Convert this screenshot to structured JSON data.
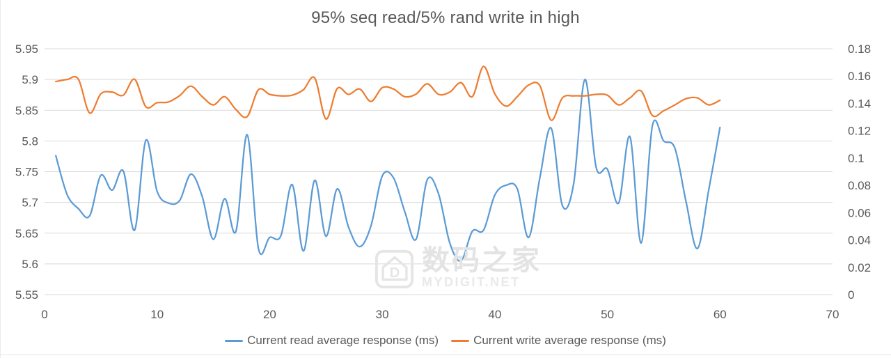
{
  "title": "95% seq read/5% rand write in high",
  "watermark": {
    "logo": "mydigit-home-logo",
    "cjk": "数码之家",
    "latin": "MYDIGIT.NET"
  },
  "legend": [
    {
      "label": "Current read average response (ms)",
      "color": "#5B9BD5"
    },
    {
      "label": "Current write average response (ms)",
      "color": "#ED7D31"
    }
  ],
  "colors": {
    "read_line": "#5B9BD5",
    "write_line": "#ED7D31",
    "grid": "#D9D9D9",
    "axis_text": "#595959",
    "title_text": "#595959",
    "watermark": "#e3e3e3",
    "background": "#ffffff"
  },
  "chart_data": {
    "type": "line",
    "smooth": true,
    "grid": "horizontal",
    "legend_position": "bottom",
    "title": "95% seq read/5% rand write in high",
    "xlabel": "",
    "ylabel_left": "",
    "ylabel_right": "",
    "xlim": [
      0,
      70
    ],
    "ylim_left": [
      5.55,
      5.95
    ],
    "ylim_right": [
      0,
      0.18
    ],
    "x_axis": {
      "ticks": [
        "0",
        "10",
        "20",
        "30",
        "40",
        "50",
        "60",
        "70"
      ]
    },
    "y_axis_left": {
      "ticks": [
        "5.95",
        "5.9",
        "5.85",
        "5.8",
        "5.75",
        "5.7",
        "5.65",
        "5.6",
        "5.55"
      ]
    },
    "y_axis_right": {
      "ticks": [
        "0.18",
        "0.16",
        "0.14",
        "0.12",
        "0.1",
        "0.08",
        "0.06",
        "0.04",
        "0.02",
        "0"
      ]
    },
    "x": [
      1,
      2,
      3,
      4,
      5,
      6,
      7,
      8,
      9,
      10,
      11,
      12,
      13,
      14,
      15,
      16,
      17,
      18,
      19,
      20,
      21,
      22,
      23,
      24,
      25,
      26,
      27,
      28,
      29,
      30,
      31,
      32,
      33,
      34,
      35,
      36,
      37,
      38,
      39,
      40,
      41,
      42,
      43,
      44,
      45,
      46,
      47,
      48,
      49,
      50,
      51,
      52,
      53,
      54,
      55,
      56,
      57,
      58,
      59,
      60
    ],
    "series": [
      {
        "name": "Current read average response (ms)",
        "axis": "left",
        "color": "#5B9BD5",
        "values": [
          5.776,
          5.713,
          5.69,
          5.678,
          5.744,
          5.72,
          5.751,
          5.655,
          5.801,
          5.718,
          5.699,
          5.703,
          5.746,
          5.71,
          5.64,
          5.706,
          5.653,
          5.81,
          5.625,
          5.643,
          5.646,
          5.729,
          5.621,
          5.736,
          5.645,
          5.722,
          5.66,
          5.628,
          5.662,
          5.743,
          5.74,
          5.685,
          5.64,
          5.737,
          5.714,
          5.634,
          5.605,
          5.653,
          5.655,
          5.712,
          5.728,
          5.722,
          5.643,
          5.74,
          5.821,
          5.695,
          5.73,
          5.9,
          5.757,
          5.754,
          5.699,
          5.807,
          5.634,
          5.825,
          5.8,
          5.788,
          5.7,
          5.625,
          5.72,
          5.822
        ]
      },
      {
        "name": "Current write average response (ms)",
        "axis": "right",
        "color": "#ED7D31",
        "values": [
          0.156,
          0.1575,
          0.1578,
          0.133,
          0.147,
          0.1483,
          0.146,
          0.1577,
          0.1375,
          0.1405,
          0.141,
          0.1457,
          0.1526,
          0.145,
          0.1389,
          0.1449,
          0.1355,
          0.1303,
          0.15,
          0.1466,
          0.1455,
          0.146,
          0.15,
          0.1586,
          0.1286,
          0.1509,
          0.1466,
          0.1505,
          0.1414,
          0.1515,
          0.1505,
          0.1449,
          0.1468,
          0.1543,
          0.1466,
          0.1483,
          0.1552,
          0.1449,
          0.1671,
          0.147,
          0.138,
          0.145,
          0.1534,
          0.153,
          0.1277,
          0.144,
          0.1455,
          0.1455,
          0.1466,
          0.146,
          0.1389,
          0.144,
          0.1491,
          0.1311,
          0.1346,
          0.1389,
          0.1435,
          0.144,
          0.1389,
          0.1423
        ]
      }
    ]
  }
}
